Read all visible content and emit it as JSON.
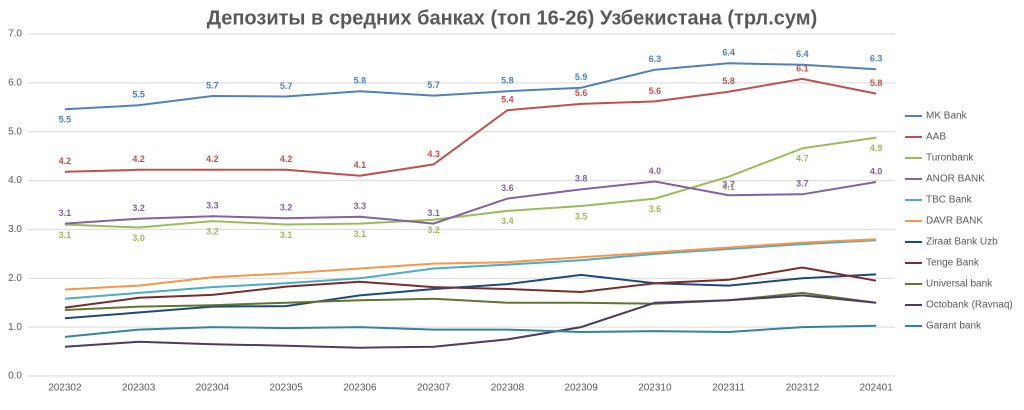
{
  "chart_data": {
    "type": "line",
    "title": "Депозиты в средних банках (топ 16-26) Узбекистана (трл.сум)",
    "categories": [
      "202302",
      "202303",
      "202304",
      "202305",
      "202306",
      "202307",
      "202308",
      "202309",
      "202310",
      "202311",
      "202312",
      "202401"
    ],
    "ylim": [
      0,
      7
    ],
    "yticks": [
      {
        "value": 0,
        "label": "0.0"
      },
      {
        "value": 1,
        "label": "1.0"
      },
      {
        "value": 2,
        "label": "2.0"
      },
      {
        "value": 3,
        "label": "3.0"
      },
      {
        "value": 4,
        "label": "4.0"
      },
      {
        "value": 5,
        "label": "5.0"
      },
      {
        "value": 6,
        "label": "6.0"
      },
      {
        "value": 7,
        "label": "7.0"
      }
    ],
    "grid": true,
    "legend": "right",
    "series": [
      {
        "name": "MK Bank",
        "color": "#4f81bd",
        "values": [
          5.46,
          5.54,
          5.73,
          5.72,
          5.83,
          5.74,
          5.83,
          5.9,
          6.27,
          6.4,
          6.37,
          6.28
        ],
        "value_labels": [
          "5.5",
          "5.5",
          "5.7",
          "5.7",
          "5.8",
          "5.7",
          "5.8",
          "5.9",
          "6.3",
          "6.4",
          "6.4",
          "6.3"
        ]
      },
      {
        "name": "AAB",
        "color": "#c0504d",
        "values": [
          4.18,
          4.22,
          4.22,
          4.22,
          4.1,
          4.33,
          5.44,
          5.57,
          5.62,
          5.82,
          6.08,
          5.78
        ],
        "value_labels": [
          "4.2",
          "4.2",
          "4.2",
          "4.2",
          "4.1",
          "4.3",
          "5.4",
          "5.6",
          "5.6",
          "5.8",
          "6.1",
          "5.8"
        ]
      },
      {
        "name": "Turonbank",
        "color": "#9bbb59",
        "values": [
          3.1,
          3.04,
          3.17,
          3.1,
          3.12,
          3.2,
          3.38,
          3.48,
          3.63,
          4.08,
          4.66,
          4.88
        ],
        "value_labels": [
          "3.1",
          "3.0",
          "3.2",
          "3.1",
          "3.1",
          "3.2",
          "3.4",
          "3.5",
          "3.6",
          "4.1",
          "4.7",
          "4.9"
        ]
      },
      {
        "name": "ANOR BANK",
        "color": "#8064a2",
        "values": [
          3.12,
          3.22,
          3.27,
          3.23,
          3.26,
          3.12,
          3.63,
          3.82,
          3.98,
          3.7,
          3.72,
          3.97
        ],
        "value_labels": [
          "3.1",
          "3.2",
          "3.3",
          "3.2",
          "3.3",
          "3.1",
          "3.6",
          "3.8",
          "4.0",
          "3.7",
          "3.7",
          "4.0"
        ]
      },
      {
        "name": "TBC Bank",
        "color": "#4bacc6",
        "values": [
          1.58,
          1.7,
          1.82,
          1.9,
          2.0,
          2.2,
          2.28,
          2.37,
          2.5,
          2.6,
          2.7,
          2.78
        ]
      },
      {
        "name": "DAVR BANK",
        "color": "#f79646",
        "values": [
          1.77,
          1.85,
          2.02,
          2.1,
          2.2,
          2.3,
          2.33,
          2.43,
          2.53,
          2.63,
          2.73,
          2.8
        ]
      },
      {
        "name": "Ziraat Bank Uzb",
        "color": "#1f497d",
        "values": [
          1.18,
          1.3,
          1.42,
          1.43,
          1.65,
          1.78,
          1.88,
          2.07,
          1.9,
          1.85,
          2.0,
          2.08
        ]
      },
      {
        "name": "Tenge Bank",
        "color": "#7b2c2a",
        "values": [
          1.4,
          1.6,
          1.66,
          1.83,
          1.93,
          1.82,
          1.78,
          1.72,
          1.9,
          1.97,
          2.22,
          1.95
        ]
      },
      {
        "name": "Universal bank",
        "color": "#5f7530",
        "values": [
          1.35,
          1.42,
          1.45,
          1.5,
          1.55,
          1.58,
          1.5,
          1.5,
          1.48,
          1.55,
          1.7,
          1.5
        ]
      },
      {
        "name": "Octobank (Ravnaq)",
        "color": "#4d3b62",
        "values": [
          0.6,
          0.7,
          0.65,
          0.62,
          0.58,
          0.6,
          0.75,
          1.0,
          1.5,
          1.55,
          1.65,
          1.5
        ]
      },
      {
        "name": "Garant bank",
        "color": "#31859c",
        "values": [
          0.8,
          0.95,
          1.0,
          0.98,
          1.0,
          0.95,
          0.95,
          0.9,
          0.92,
          0.9,
          1.0,
          1.03
        ]
      }
    ]
  }
}
